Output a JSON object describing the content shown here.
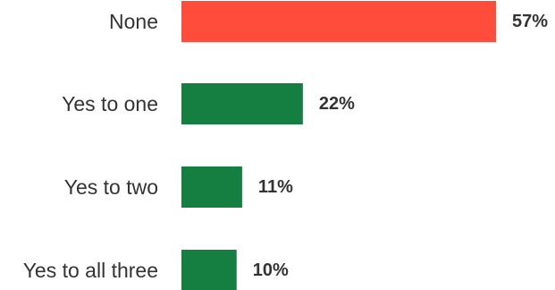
{
  "chart_data": {
    "type": "bar",
    "orientation": "horizontal",
    "title": "",
    "xlabel": "",
    "ylabel": "",
    "grid": false,
    "categories": [
      "None",
      "Yes to one",
      "Yes to two",
      "Yes to all three"
    ],
    "values": [
      57,
      22,
      11,
      10
    ],
    "value_labels": [
      "57%",
      "22%",
      "11%",
      "10%"
    ],
    "colors": [
      "#ff4c3b",
      "#157f41",
      "#157f41",
      "#157f41"
    ],
    "xlim": [
      0,
      57
    ]
  }
}
